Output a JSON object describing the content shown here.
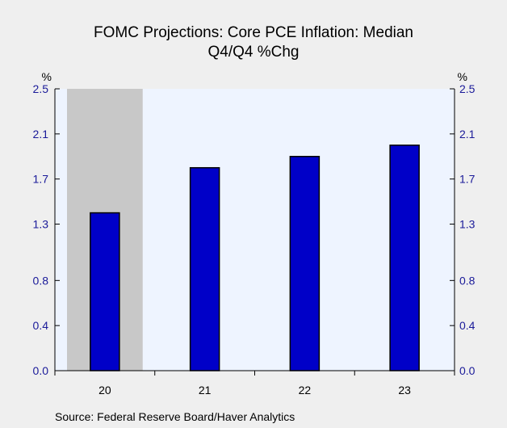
{
  "chart_data": {
    "type": "bar",
    "title": "FOMC Projections: Core PCE Inflation: Median",
    "subtitle": "Q4/Q4 %Chg",
    "categories": [
      "20",
      "21",
      "22",
      "23"
    ],
    "values": [
      1.4,
      1.8,
      1.9,
      2.0
    ],
    "yticks": [
      "0.0",
      "0.4",
      "0.8",
      "1.3",
      "1.7",
      "2.1",
      "2.5"
    ],
    "ylim": [
      0,
      2.5
    ],
    "yunit_left": "%",
    "yunit_right": "%",
    "shaded_categories": [
      "20"
    ],
    "source": "Source:  Federal Reserve Board/Haver Analytics",
    "grid": false,
    "legend": "none",
    "colors": {
      "bar": "#0000c8",
      "bar_outline": "#000000",
      "plot_bg": "#eef4ff",
      "shade": "#c8c8c8",
      "tick_label": "#1a1a99"
    }
  }
}
